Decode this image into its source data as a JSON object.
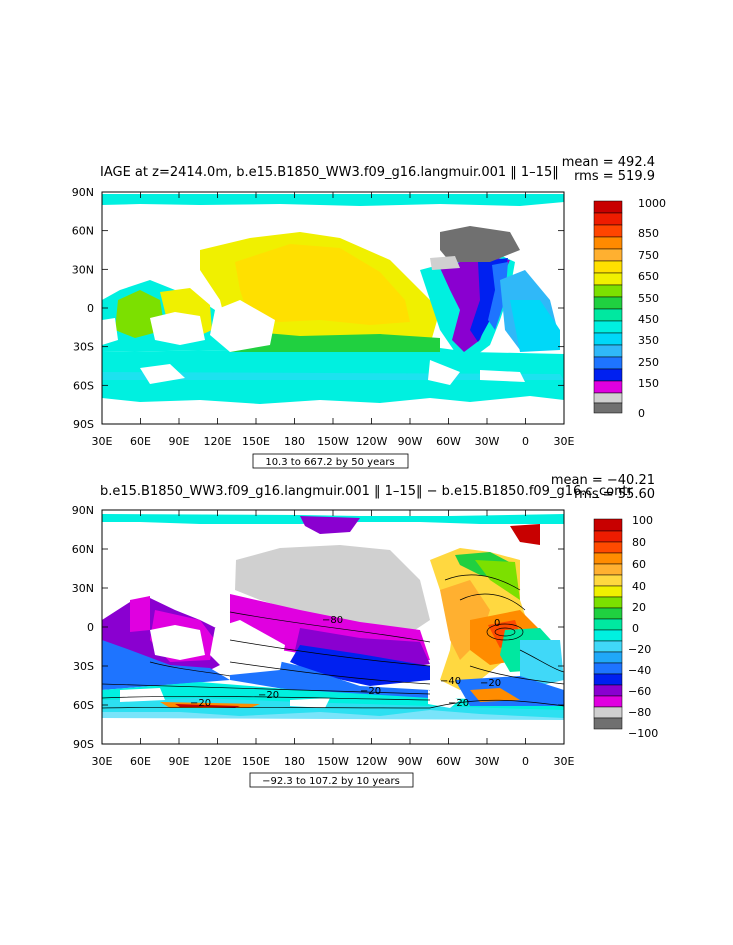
{
  "panels": [
    {
      "title": "IAGE at z=2414.0m, b.e15.B1850_WW3.f09_g16.langmuir.001 ‖ 1–15‖",
      "mean": "mean = 492.4",
      "rms": "rms = 519.9",
      "range_label": "10.3 to 667.2 by 50 years",
      "colorbar_labels": [
        "1000",
        "850",
        "750",
        "650",
        "550",
        "450",
        "350",
        "250",
        "150",
        "0"
      ]
    },
    {
      "title": "b.e15.B1850_WW3.f09_g16.langmuir.001 ‖ 1–15‖ − b.e15.B1850.f09_g16.c_contr",
      "mean": "mean = −40.21",
      "rms": "rms = 55.60",
      "range_label": "−92.3 to 107.2 by 10 years",
      "colorbar_labels": [
        "100",
        "80",
        "60",
        "40",
        "20",
        "0",
        "−20",
        "−40",
        "−60",
        "−80",
        "−100"
      ]
    }
  ],
  "axes": {
    "y_labels": [
      "90N",
      "60N",
      "30N",
      "0",
      "30S",
      "60S",
      "90S"
    ],
    "x_labels": [
      "30E",
      "60E",
      "90E",
      "120E",
      "150E",
      "180",
      "150W",
      "120W",
      "90W",
      "60W",
      "30W",
      "0",
      "30E"
    ]
  },
  "contour_labels": [
    "−80",
    "−40",
    "−20",
    "−20",
    "−20",
    "−20",
    "−20",
    "0"
  ],
  "colors": {
    "panel1_scale": [
      "#c80000",
      "#ee1c00",
      "#ff4500",
      "#ff8a00",
      "#ffb030",
      "#ffe000",
      "#f0f000",
      "#7ce000",
      "#20d040",
      "#00e8a0",
      "#00f0e0",
      "#00d8f8",
      "#30b8f8",
      "#1e74ff",
      "#0020f0",
      "#8a00d0",
      "#e000e0",
      "#d0d0d0",
      "#707070"
    ],
    "panel2_scale": [
      "#c80000",
      "#ee1c00",
      "#ff4a00",
      "#ff8c00",
      "#ffb030",
      "#ffd840",
      "#f0f000",
      "#7ce000",
      "#20d040",
      "#00e8a0",
      "#00f0e0",
      "#40d8f8",
      "#20a8f8",
      "#1e74ff",
      "#0020f0",
      "#8a00d0",
      "#e000e0",
      "#d0d0d0",
      "#707070"
    ]
  }
}
